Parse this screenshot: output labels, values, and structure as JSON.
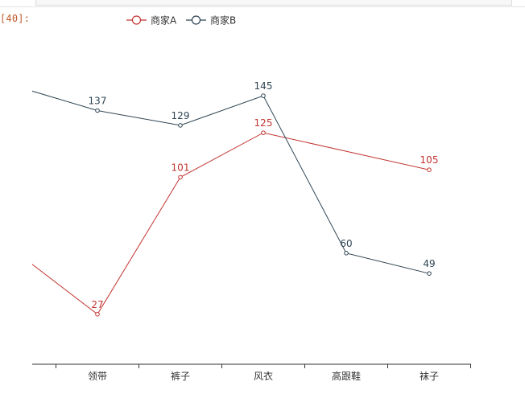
{
  "prompt": "[40]:",
  "colors": {
    "series_a": "#c23531",
    "series_b": "#2f4554",
    "axis": "#333333"
  },
  "chart_data": {
    "type": "line",
    "categories": [
      "",
      "领带",
      "裤子",
      "风衣",
      "高跟鞋",
      "袜子"
    ],
    "series": [
      {
        "name": "商家A",
        "values": [
          null,
          27,
          101,
          125,
          null,
          105
        ]
      },
      {
        "name": "商家B",
        "values": [
          null,
          137,
          129,
          145,
          60,
          49
        ]
      }
    ],
    "ylim": [
      0,
      175
    ],
    "grid": false,
    "legend": "top-center",
    "title": "",
    "xlabel": "",
    "ylabel": ""
  }
}
